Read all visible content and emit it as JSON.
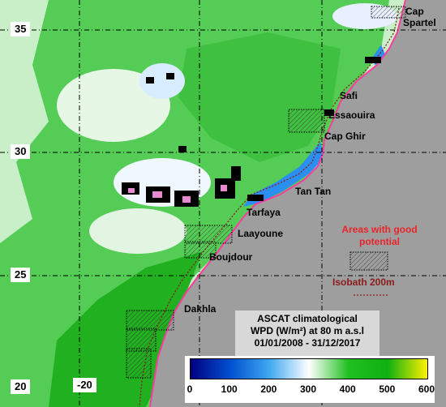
{
  "lat_labels": [
    "35",
    "30",
    "25",
    "20"
  ],
  "lon_label": "-20",
  "places": {
    "cap": "Cap",
    "spartel": "Spartel",
    "safi": "Safi",
    "essaouira": "Essaouira",
    "cap_ghir": "Cap Ghir",
    "tan_tan": "Tan Tan",
    "tarfaya": "Tarfaya",
    "laayoune": "Laayoune",
    "boujdour": "Boujdour",
    "dakhla": "Dakhla"
  },
  "legend": {
    "areas_line1": "Areas with good",
    "areas_line2": "potential",
    "isobath": "Isobath 200m"
  },
  "info": {
    "line1": "ASCAT climatological",
    "line2": "WPD (W/m²) at 80 m a.s.l",
    "line3": "01/01/2008 - 31/12/2017"
  },
  "colorbar": {
    "ticks": [
      "0",
      "100",
      "200",
      "300",
      "400",
      "500",
      "600"
    ],
    "range": [
      0,
      600
    ],
    "stops": [
      "#000080",
      "#0050d0",
      "#40a8f0",
      "#ffffff",
      "#20c020",
      "#10b010",
      "#fff000"
    ]
  },
  "colors": {
    "land": "#9e9e9e",
    "coast": "#ff3aa0",
    "ocean_green": "#3fbf3f",
    "isobath": "#8b1a1a",
    "legend_red": "#e8242a"
  }
}
